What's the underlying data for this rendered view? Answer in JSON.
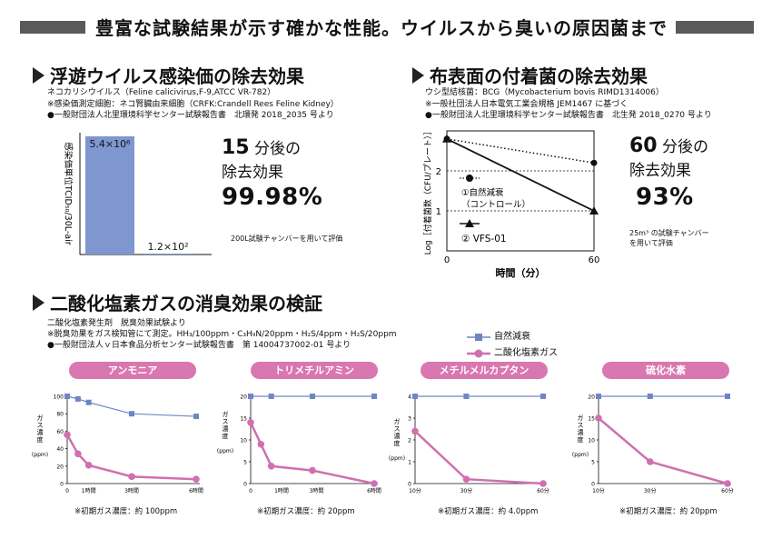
{
  "header": {
    "banner": "豊富な試験結果が示す確かな性能。ウイルスから臭いの原因菌まで"
  },
  "virus": {
    "title": "浮遊ウイルス感染価の除去効果",
    "lines": [
      "ネコカリシウイルス（Feline calicivirus,F-9,ATCC VR-782）",
      "※感染価測定細胞：ネコ腎臓由来細胞（CRFK:Crandell Rees Feline Kidney）",
      "●一般財団法人北里環境科学センター試験報告書　北環発 2018_2035 号より"
    ],
    "result_minutes": "15",
    "result_minutes_text": "分後の",
    "result_effect": "除去効果",
    "result_percent": "99.98%",
    "note": "200L試験チャンバーを用いて評価"
  },
  "bacteria": {
    "title": "布表面の付着菌の除去効果",
    "lines": [
      "ウシ型結核菌：BCG（Mycobacterium bovis RIMD1314006）",
      "※一般社団法人日本電気工業会規格 JEM1467 に基づく",
      "●一般財団法人北里環境科学センター試験報告書　北生発 2018_0270 号より"
    ],
    "result_minutes": "60",
    "result_minutes_text": "分後の",
    "result_effect": "除去効果",
    "result_percent": "93%",
    "note_lines": [
      "25m³ の試験チャンバー",
      "を用いて評価"
    ]
  },
  "odor": {
    "title": "二酸化塩素ガスの消臭効果の検証",
    "lines": [
      "二酸化塩素発生剤　脱臭効果試験より",
      "※脱臭効果をガス検知管にて測定。HH₃/100ppm・C₃H₉N/20ppm・H₂S/4ppm・H₂S/20ppm",
      "●一般財団法人ｖ日本食品分析センター試験報告書　第 14004737002-01 号より"
    ]
  },
  "chart_data": [
    {
      "type": "bar",
      "ylabel": "感染価単位TCID₅₀/30L-air",
      "categories": [
        "",
        ""
      ],
      "values": [
        5400000,
        120
      ],
      "value_labels": [
        "5.4×10⁶",
        "1.2×10²"
      ],
      "colors": [
        "#7f97cf"
      ]
    },
    {
      "type": "line",
      "xlabel": "時間（分）",
      "ylabel": "Log［付着菌数（CFU/プレート）］",
      "x_ticks": [
        "0",
        "60"
      ],
      "y_ticks": [
        "1",
        "2"
      ],
      "series": [
        {
          "name": "①自然減衰（コントロール）",
          "x": [
            0,
            60
          ],
          "y": [
            2.8,
            2.2
          ],
          "style": "dotted",
          "marker": "circle"
        },
        {
          "name": "② VFS-01",
          "x": [
            0,
            60
          ],
          "y": [
            2.8,
            1.0
          ],
          "style": "solid",
          "marker": "triangle"
        }
      ],
      "ylim": [
        0,
        3
      ]
    },
    {
      "type": "line",
      "title": "アンモニア",
      "ylabel": "ガス濃度（ppm）",
      "x_ticks": [
        "0",
        "1時間",
        "3時間",
        "6時間"
      ],
      "y_ticks": [
        "0",
        "20",
        "40",
        "60",
        "80",
        "100"
      ],
      "ylim": [
        0,
        100
      ],
      "series": [
        {
          "name": "自然減衰",
          "x": [
            0,
            0.5,
            1,
            3,
            6
          ],
          "y": [
            100,
            97,
            93,
            80,
            77
          ]
        },
        {
          "name": "二酸化塩素ガス",
          "x": [
            0,
            0.5,
            1,
            3,
            6
          ],
          "y": [
            56,
            34,
            21,
            8,
            5
          ]
        }
      ],
      "note": "※初期ガス濃度：約 100ppm"
    },
    {
      "type": "line",
      "title": "トリメチルアミン",
      "ylabel": "ガス濃度（ppm）",
      "x_ticks": [
        "0",
        "1時間",
        "3時間",
        "6時間"
      ],
      "y_ticks": [
        "0",
        "5",
        "10",
        "15",
        "20"
      ],
      "ylim": [
        0,
        20
      ],
      "series": [
        {
          "name": "自然減衰",
          "x": [
            0,
            1,
            3,
            6
          ],
          "y": [
            20,
            20,
            20,
            20
          ]
        },
        {
          "name": "二酸化塩素ガス",
          "x": [
            0,
            0.5,
            1,
            3,
            6
          ],
          "y": [
            14,
            9,
            4,
            3,
            0
          ]
        }
      ],
      "note": "※初期ガス濃度：約 20ppm"
    },
    {
      "type": "line",
      "title": "メチルメルカプタン",
      "ylabel": "ガス濃度（ppm）",
      "x_ticks": [
        "10分",
        "30分",
        "60分"
      ],
      "y_ticks": [
        "0",
        "1",
        "2",
        "3",
        "4"
      ],
      "ylim": [
        0,
        4
      ],
      "series": [
        {
          "name": "自然減衰",
          "x": [
            10,
            30,
            60
          ],
          "y": [
            4,
            4,
            4
          ]
        },
        {
          "name": "二酸化塩素ガス",
          "x": [
            10,
            30,
            60
          ],
          "y": [
            2.4,
            0.2,
            0
          ]
        }
      ],
      "note": "※初期ガス濃度：約 4.0ppm"
    },
    {
      "type": "line",
      "title": "硫化水素",
      "ylabel": "ガス濃度（ppm）",
      "x_ticks": [
        "10分",
        "30分",
        "60分"
      ],
      "y_ticks": [
        "0",
        "5",
        "10",
        "15",
        "20"
      ],
      "ylim": [
        0,
        20
      ],
      "series": [
        {
          "name": "自然減衰",
          "x": [
            10,
            30,
            60
          ],
          "y": [
            20,
            20,
            20
          ]
        },
        {
          "name": "二酸化塩素ガス",
          "x": [
            10,
            30,
            60
          ],
          "y": [
            15,
            5,
            0
          ]
        }
      ],
      "note": "※初期ガス濃度：約 20ppm"
    }
  ],
  "legend": {
    "natural": "自然減衰",
    "chlorine": "二酸化塩素ガス"
  },
  "colors": {
    "natural": "#6f86c2",
    "chlorine": "#d070b0",
    "bar": "#7f97cf"
  }
}
